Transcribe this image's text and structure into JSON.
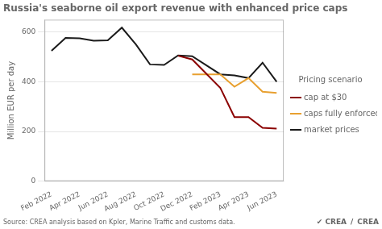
{
  "chart_data": {
    "type": "line",
    "title": "Russia's seaborne oil export revenue with enhanced price caps",
    "ylabel": "Million EUR per day",
    "annotations": [
      "Source: CREA analysis based on Kpler, Marine Traffic and customs data.",
      "✔ CREA",
      "/",
      "CREA"
    ],
    "legend_title": "Pricing scenario",
    "legend": "right",
    "grid": "y",
    "xlim": [
      0.5,
      17.5
    ],
    "xticks": [
      {
        "value": 1,
        "label": "Feb 2022"
      },
      {
        "value": 3,
        "label": "Apr 2022"
      },
      {
        "value": 5,
        "label": "Jun 2022"
      },
      {
        "value": 7,
        "label": "Aug 2022"
      },
      {
        "value": 9,
        "label": "Oct 2022"
      },
      {
        "value": 11,
        "label": "Dec 2022"
      },
      {
        "value": 13,
        "label": "Feb 2023"
      },
      {
        "value": 15,
        "label": "Apr 2023"
      },
      {
        "value": 17,
        "label": "Jun 2023"
      }
    ],
    "ylim": [
      0,
      650
    ],
    "yticks": [
      0,
      200,
      400,
      600
    ],
    "series": [
      {
        "name": "cap at $30",
        "color": "#8b0000",
        "x": [
          10,
          11,
          13,
          14,
          15,
          16,
          17
        ],
        "values": [
          505,
          490,
          375,
          258,
          258,
          215,
          212
        ]
      },
      {
        "name": "caps fully enforced",
        "color": "#e8a030",
        "x": [
          11,
          13,
          14,
          15,
          16,
          17
        ],
        "values": [
          430,
          430,
          380,
          415,
          360,
          355
        ]
      },
      {
        "name": "market prices",
        "color": "#1a1a1a",
        "x": [
          1,
          2,
          3,
          4,
          5,
          6,
          7,
          8,
          9,
          10,
          11,
          13,
          14,
          15,
          16,
          17
        ],
        "values": [
          525,
          577,
          575,
          565,
          567,
          618,
          550,
          470,
          468,
          506,
          503,
          430,
          426,
          415,
          477,
          400
        ]
      }
    ]
  }
}
